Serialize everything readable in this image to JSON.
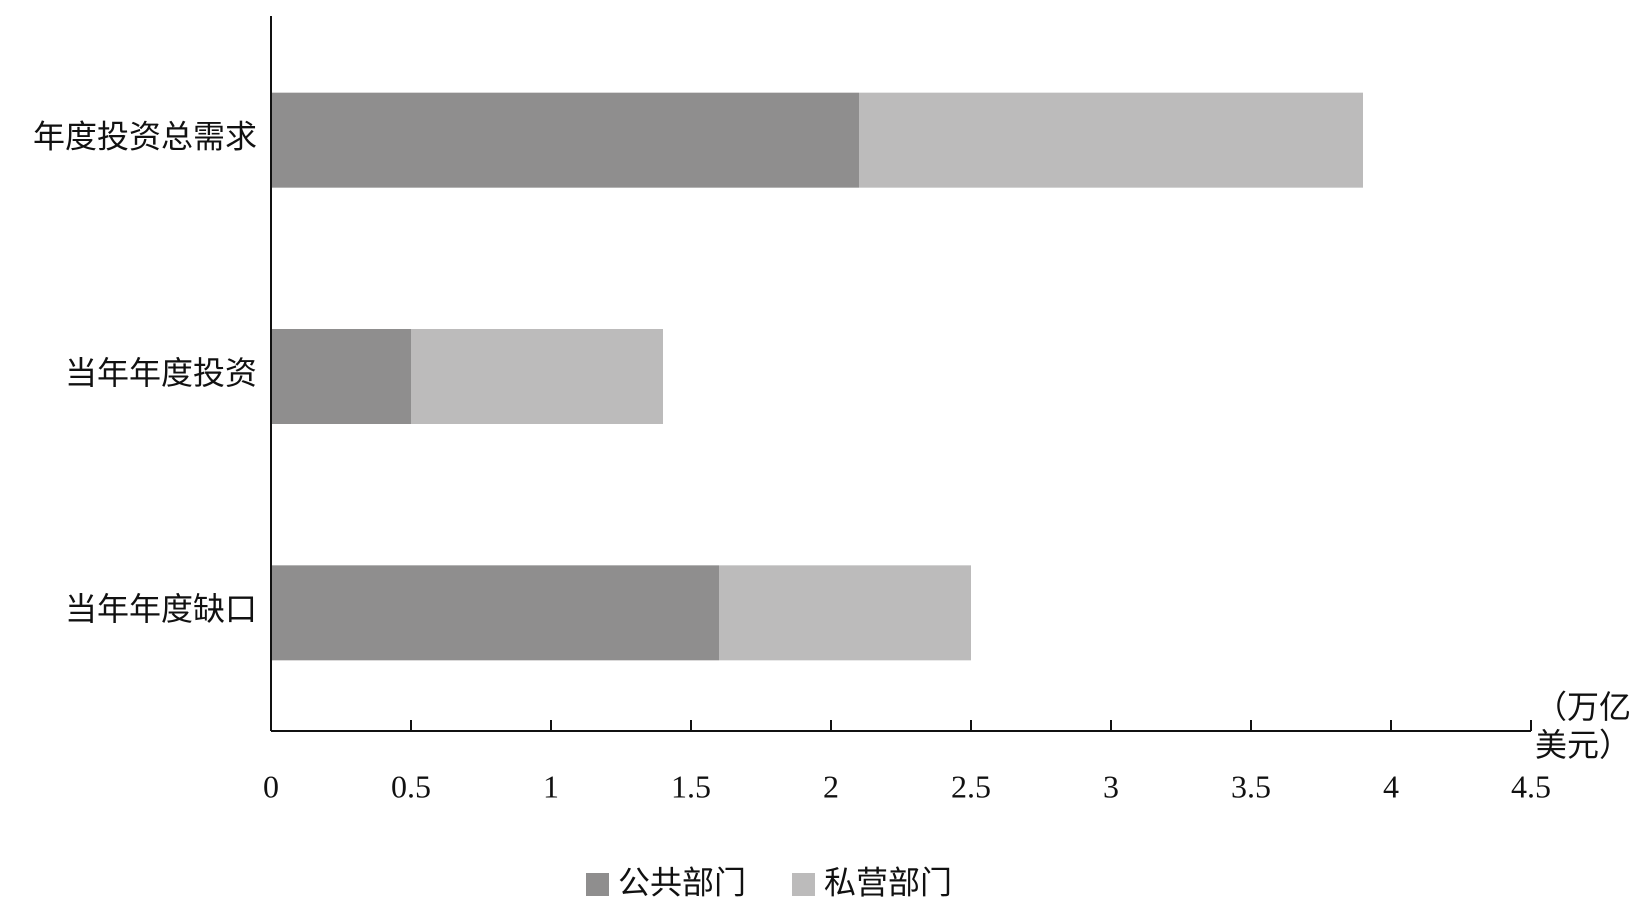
{
  "chart_data": {
    "type": "stacked-bar-horizontal",
    "categories": [
      "年度投资总需求",
      "当年年度投资",
      "当年年度缺口"
    ],
    "series": [
      {
        "name": "公共部门",
        "color": "#8f8e8e",
        "values": [
          2.1,
          0.5,
          1.6
        ]
      },
      {
        "name": "私营部门",
        "color": "#bcbbbb",
        "values": [
          1.8,
          0.9,
          0.9
        ]
      }
    ],
    "xlim": [
      0,
      4.5
    ],
    "xticks": [
      0,
      0.5,
      1,
      1.5,
      2,
      2.5,
      3,
      3.5,
      4,
      4.5
    ],
    "x_label": "（万亿美元）",
    "legend": "bottom"
  }
}
